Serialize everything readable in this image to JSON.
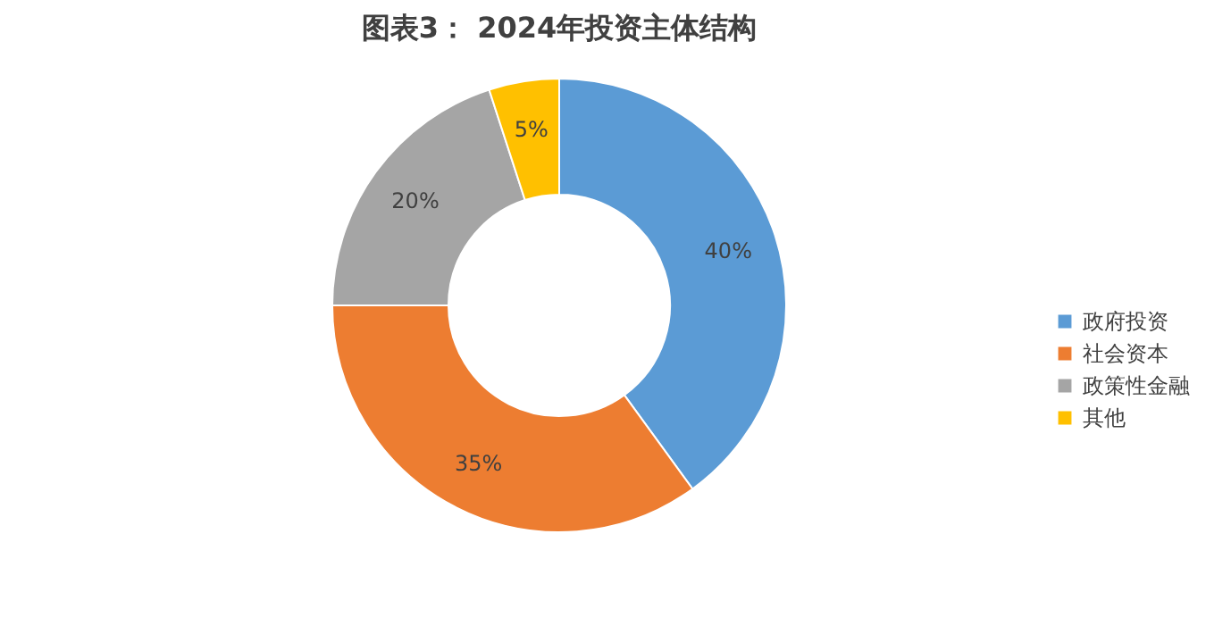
{
  "chart_data": {
    "type": "donut",
    "title": "图表3：  2024年投资主体结构",
    "categories": [
      "政府投资",
      "社会资本",
      "政策性金融",
      "其他"
    ],
    "values": [
      40,
      35,
      20,
      5
    ],
    "colors": [
      "#5b9bd5",
      "#ed7d31",
      "#a5a5a5",
      "#ffc000"
    ],
    "value_labels": [
      "40%",
      "35%",
      "20%",
      "5%"
    ],
    "legend": "right"
  }
}
